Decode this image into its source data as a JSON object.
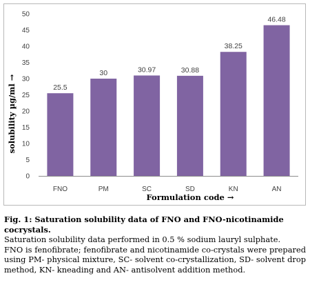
{
  "chart_data": {
    "type": "bar",
    "categories": [
      "FNO",
      "PM",
      "SC",
      "SD",
      "KN",
      "AN"
    ],
    "values": [
      25.5,
      30,
      30.97,
      30.88,
      38.25,
      46.48
    ],
    "data_labels": [
      "25.5",
      "30",
      "30.97",
      "30.88",
      "38.25",
      "46.48"
    ],
    "title": "",
    "xlabel": "Formulation code →",
    "ylabel": "solubility µg/ml →",
    "ylim": [
      0,
      50
    ],
    "yticks": [
      "0",
      "5",
      "10",
      "15",
      "20",
      "25",
      "30",
      "35",
      "40",
      "45",
      "50"
    ],
    "grid": false,
    "legend": "none",
    "bar_color": "#8064a2"
  },
  "caption": {
    "title": "Fig. 1: Saturation solubility data of FNO and FNO-nicotinamide cocrystals.",
    "notes": [
      "Saturation solubility data performed in 0.5 % sodium lauryl sulphate.",
      "FNO is fenofibrate; fenofibrate and nicotinamide co-crystals were prepared using PM- physical mixture, SC- solvent co-crystallization, SD- solvent drop method, KN- kneading and AN- antisolvent addition method."
    ]
  }
}
